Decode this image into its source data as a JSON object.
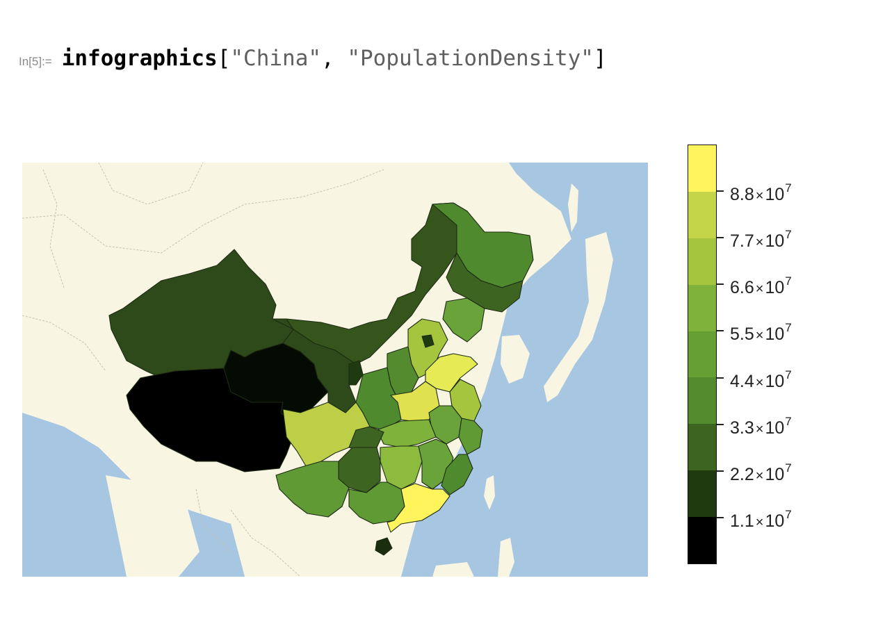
{
  "notebook": {
    "input_label": "In[5]:=",
    "code": {
      "function": "infographics",
      "open": "[",
      "arg1": "\"China\"",
      "sep": ", ",
      "arg2": "\"PopulationDensity\"",
      "close": "]"
    }
  },
  "legend": {
    "colors": [
      "#fff45c",
      "#c5d54a",
      "#a6c53f",
      "#7eb23a",
      "#66a034",
      "#558b2f",
      "#3e6422",
      "#203a10",
      "#000000"
    ],
    "ticks": [
      {
        "mantissa": "8.8",
        "times": "×",
        "base": "10",
        "exponent": "7",
        "value": 88000000
      },
      {
        "mantissa": "7.7",
        "times": "×",
        "base": "10",
        "exponent": "7",
        "value": 77000000
      },
      {
        "mantissa": "6.6",
        "times": "×",
        "base": "10",
        "exponent": "7",
        "value": 66000000
      },
      {
        "mantissa": "5.5",
        "times": "×",
        "base": "10",
        "exponent": "7",
        "value": 55000000
      },
      {
        "mantissa": "4.4",
        "times": "×",
        "base": "10",
        "exponent": "7",
        "value": 44000000
      },
      {
        "mantissa": "3.3",
        "times": "×",
        "base": "10",
        "exponent": "7",
        "value": 33000000
      },
      {
        "mantissa": "2.2",
        "times": "×",
        "base": "10",
        "exponent": "7",
        "value": 22000000
      },
      {
        "mantissa": "1.1",
        "times": "×",
        "base": "10",
        "exponent": "7",
        "value": 11000000
      }
    ]
  },
  "map": {
    "ocean_color": "#a7c6e2",
    "land_color": "#f8f5e3"
  }
}
